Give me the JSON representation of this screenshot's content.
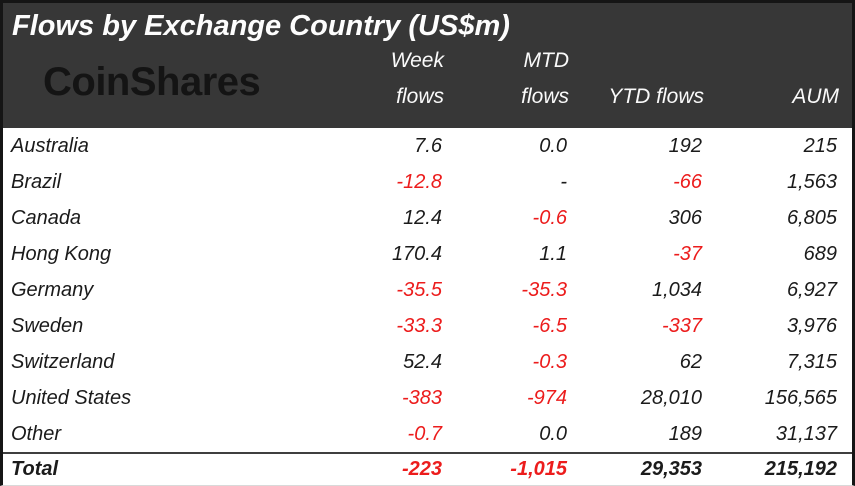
{
  "title": "Flows by Exchange Country (US$m)",
  "logo": "CoinShares",
  "colors": {
    "header_bg": "#373737",
    "negative_value": "#ec1c1c",
    "body_text": "#1b1b1b",
    "title_text": "#fdfdfd"
  },
  "columns": {
    "country": {
      "label": ""
    },
    "week": {
      "line1": "Week",
      "line2": "flows"
    },
    "mtd": {
      "line1": "MTD",
      "line2": "flows"
    },
    "ytd": {
      "line1": "",
      "line2": "YTD flows"
    },
    "aum": {
      "line1": "",
      "line2": "AUM"
    }
  },
  "rows": [
    {
      "country": "Australia",
      "cells": [
        {
          "v": "7.6",
          "neg": false
        },
        {
          "v": "0.0",
          "neg": false
        },
        {
          "v": "192",
          "neg": false
        },
        {
          "v": "215",
          "neg": false
        }
      ]
    },
    {
      "country": "Brazil",
      "cells": [
        {
          "v": "-12.8",
          "neg": true
        },
        {
          "v": "-",
          "neg": false
        },
        {
          "v": "-66",
          "neg": true
        },
        {
          "v": "1,563",
          "neg": false
        }
      ]
    },
    {
      "country": "Canada",
      "cells": [
        {
          "v": "12.4",
          "neg": false
        },
        {
          "v": "-0.6",
          "neg": true
        },
        {
          "v": "306",
          "neg": false
        },
        {
          "v": "6,805",
          "neg": false
        }
      ]
    },
    {
      "country": "Hong Kong",
      "cells": [
        {
          "v": "170.4",
          "neg": false
        },
        {
          "v": "1.1",
          "neg": false
        },
        {
          "v": "-37",
          "neg": true
        },
        {
          "v": "689",
          "neg": false
        }
      ]
    },
    {
      "country": "Germany",
      "cells": [
        {
          "v": "-35.5",
          "neg": true
        },
        {
          "v": "-35.3",
          "neg": true
        },
        {
          "v": "1,034",
          "neg": false
        },
        {
          "v": "6,927",
          "neg": false
        }
      ]
    },
    {
      "country": "Sweden",
      "cells": [
        {
          "v": "-33.3",
          "neg": true
        },
        {
          "v": "-6.5",
          "neg": true
        },
        {
          "v": "-337",
          "neg": true
        },
        {
          "v": "3,976",
          "neg": false
        }
      ]
    },
    {
      "country": "Switzerland",
      "cells": [
        {
          "v": "52.4",
          "neg": false
        },
        {
          "v": "-0.3",
          "neg": true
        },
        {
          "v": "62",
          "neg": false
        },
        {
          "v": "7,315",
          "neg": false
        }
      ]
    },
    {
      "country": "United States",
      "cells": [
        {
          "v": "-383",
          "neg": true
        },
        {
          "v": "-974",
          "neg": true
        },
        {
          "v": "28,010",
          "neg": false
        },
        {
          "v": "156,565",
          "neg": false
        }
      ]
    },
    {
      "country": "Other",
      "cells": [
        {
          "v": "-0.7",
          "neg": true
        },
        {
          "v": "0.0",
          "neg": false
        },
        {
          "v": "189",
          "neg": false
        },
        {
          "v": "31,137",
          "neg": false
        }
      ]
    }
  ],
  "total": {
    "country": "Total",
    "cells": [
      {
        "v": "-223",
        "neg": true
      },
      {
        "v": "-1,015",
        "neg": true
      },
      {
        "v": "29,353",
        "neg": false
      },
      {
        "v": "215,192",
        "neg": false
      }
    ]
  }
}
